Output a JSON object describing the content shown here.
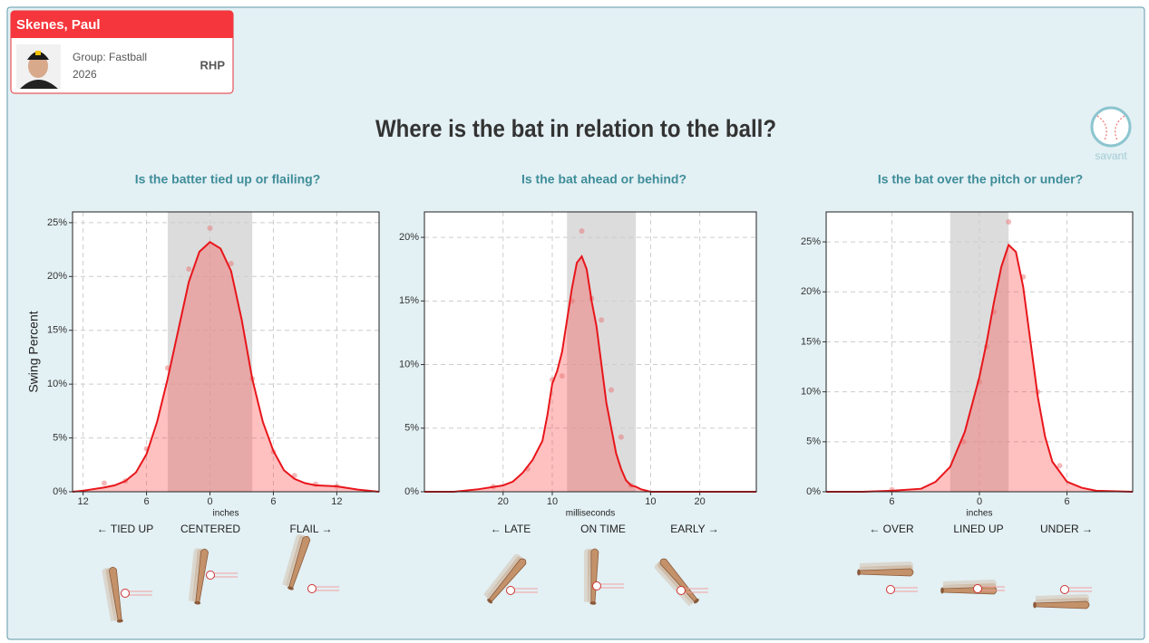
{
  "header": {
    "name": "Skenes, Paul",
    "group": "Group: Fastball",
    "season": "2026",
    "throws": "RHP"
  },
  "title": "Where is the bat in relation to the ball?",
  "logo": "savant",
  "chart_data": [
    {
      "type": "line",
      "title": "Is the batter tied up or flailing?",
      "ylabel": "Swing Percent",
      "xlabel": "inches",
      "direction_labels": [
        "← TIED UP",
        "CENTERED",
        "FLAIL →"
      ],
      "xlim": [
        -13,
        16
      ],
      "ylim": [
        0,
        26
      ],
      "xticks": [
        {
          "value": -12,
          "label": "12"
        },
        {
          "value": -6,
          "label": "6"
        },
        0,
        6,
        12
      ],
      "yticks": [
        {
          "value": 0,
          "label": "0%"
        },
        {
          "value": 5,
          "label": "5%"
        },
        {
          "value": 10,
          "label": "10%"
        },
        {
          "value": 15,
          "label": "15%"
        },
        {
          "value": 20,
          "label": "20%"
        },
        {
          "value": 25,
          "label": "25%"
        }
      ],
      "grid": true,
      "highlight": [
        -4,
        4
      ],
      "color": "#e8161b",
      "x": [
        -13,
        -12,
        -10,
        -9,
        -8,
        -7,
        -6,
        -5,
        -4,
        -3,
        -2,
        -1,
        0,
        1,
        2,
        3,
        4,
        5,
        6,
        7,
        8,
        9,
        10,
        12,
        14,
        16
      ],
      "values": [
        0,
        0.1,
        0.4,
        0.6,
        1,
        1.8,
        3.5,
        6.5,
        10.5,
        15,
        19.5,
        22.3,
        23.2,
        22.6,
        20.5,
        16,
        10.5,
        6.5,
        3.8,
        2,
        1.2,
        0.8,
        0.6,
        0.5,
        0.2,
        0
      ],
      "points": {
        "x": [
          -10,
          -8,
          -6,
          -4,
          -2,
          0,
          2,
          4,
          6,
          8,
          10,
          12
        ],
        "values": [
          0.8,
          1,
          4,
          11.5,
          20.7,
          24.5,
          21.2,
          10.5,
          3.7,
          1.5,
          0.7,
          0.5
        ]
      }
    },
    {
      "type": "line",
      "title": "Is the bat ahead or behind?",
      "xlabel": "milliseconds",
      "direction_labels": [
        "← LATE",
        "ON TIME",
        "EARLY →"
      ],
      "xlim": [
        -36,
        31.5
      ],
      "ylim": [
        0,
        22
      ],
      "xticks": [
        {
          "value": -20,
          "label": "20"
        },
        {
          "value": -10,
          "label": "10"
        },
        10,
        20
      ],
      "yticks": [
        {
          "value": 0,
          "label": "0%"
        },
        {
          "value": 5,
          "label": "5%"
        },
        {
          "value": 10,
          "label": "10%"
        },
        {
          "value": 15,
          "label": "15%"
        },
        {
          "value": 20,
          "label": "20%"
        }
      ],
      "grid": true,
      "highlight": [
        -7,
        7
      ],
      "color": "#e8161b",
      "x": [
        -36,
        -30,
        -25,
        -20,
        -18,
        -16,
        -14,
        -12,
        -11,
        -10,
        -9,
        -8,
        -7,
        -6,
        -5,
        -4,
        -3,
        -2,
        -1,
        0,
        1,
        2,
        3,
        4,
        5,
        6,
        7,
        8,
        10,
        31.5
      ],
      "values": [
        0,
        0,
        0.2,
        0.5,
        0.8,
        1.5,
        2.5,
        4,
        6,
        8.5,
        9.5,
        11,
        13.5,
        16,
        18,
        18.5,
        17.5,
        15,
        13,
        10,
        7,
        5,
        3,
        1.8,
        0.9,
        0.5,
        0.4,
        0.2,
        0,
        0
      ],
      "points": {
        "x": [
          -22,
          -15,
          -10,
          -8,
          -6,
          -4,
          -2,
          0,
          2,
          4,
          6
        ],
        "values": [
          0.4,
          1.8,
          8.8,
          9.1,
          15,
          20.5,
          15.2,
          13.5,
          8,
          4.3,
          0.5
        ]
      }
    },
    {
      "type": "line",
      "title": "Is the bat over the pitch or under?",
      "xlabel": "inches",
      "direction_labels": [
        "← OVER",
        "LINED UP",
        "UNDER →"
      ],
      "xlim": [
        -10.5,
        10.5
      ],
      "ylim": [
        0,
        28
      ],
      "xticks": [
        {
          "value": -6,
          "label": "6"
        },
        0,
        6
      ],
      "yticks": [
        {
          "value": 0,
          "label": "0%"
        },
        {
          "value": 5,
          "label": "5%"
        },
        {
          "value": 10,
          "label": "10%"
        },
        {
          "value": 15,
          "label": "15%"
        },
        {
          "value": 20,
          "label": "20%"
        },
        {
          "value": 25,
          "label": "25%"
        }
      ],
      "grid": true,
      "highlight": [
        -2,
        2
      ],
      "color": "#e8161b",
      "x": [
        -10.5,
        -8,
        -6,
        -4,
        -3,
        -2,
        -1,
        0,
        0.5,
        1,
        1.5,
        2,
        2.5,
        3,
        3.5,
        4,
        4.5,
        5,
        6,
        7,
        8,
        10.5
      ],
      "values": [
        0,
        0,
        0.1,
        0.3,
        1,
        2.5,
        6,
        11.5,
        15,
        19,
        22.5,
        24.7,
        24,
        20.5,
        15,
        9.5,
        5.5,
        3,
        1,
        0.4,
        0.1,
        0
      ],
      "points": {
        "x": [
          -6,
          -1.1,
          0,
          0.5,
          1,
          2,
          3,
          4,
          5.5
        ],
        "values": [
          0.2,
          5,
          11,
          14.5,
          18,
          27,
          21.5,
          10,
          2.6
        ]
      }
    }
  ]
}
